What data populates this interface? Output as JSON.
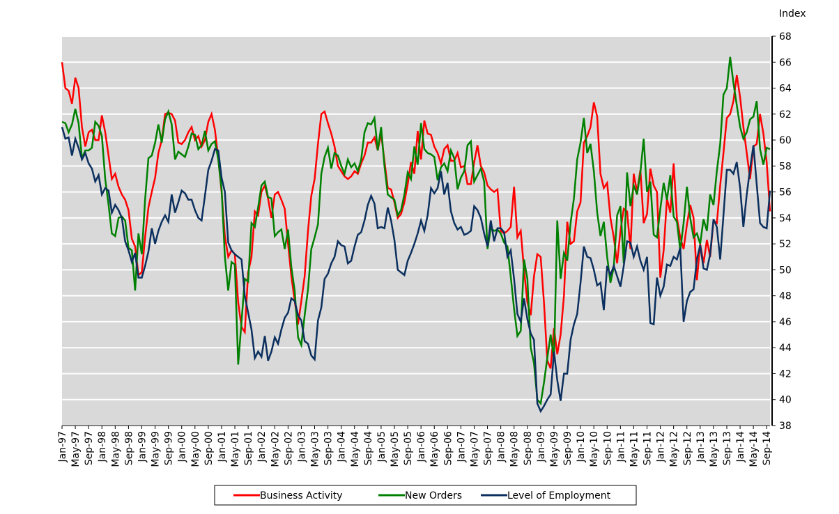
{
  "chart_data": {
    "type": "line",
    "y_label": "Index",
    "ylim": [
      38,
      68
    ],
    "yticks": [
      38,
      40,
      42,
      44,
      46,
      48,
      50,
      52,
      54,
      56,
      58,
      60,
      62,
      64,
      66,
      68
    ],
    "grid": true,
    "legend": "bottom",
    "categories": [
      "Jan-97",
      null,
      null,
      null,
      "May-97",
      null,
      null,
      null,
      "Sep-97",
      null,
      null,
      null,
      "Jan-98",
      null,
      null,
      null,
      "May-98",
      null,
      null,
      null,
      "Sep-98",
      null,
      null,
      null,
      "Jan-99",
      null,
      null,
      null,
      "May-99",
      null,
      null,
      null,
      "Sep-99",
      null,
      null,
      null,
      "Jan-00",
      null,
      null,
      null,
      "May-00",
      null,
      null,
      null,
      "Sep-00",
      null,
      null,
      null,
      "Jan-01",
      null,
      null,
      null,
      "May-01",
      null,
      null,
      null,
      "Sep-01",
      null,
      null,
      null,
      "Jan-02",
      null,
      null,
      null,
      "May-02",
      null,
      null,
      null,
      "Sep-02",
      null,
      null,
      null,
      "Jan-03",
      null,
      null,
      null,
      "May-03",
      null,
      null,
      null,
      "Sep-03",
      null,
      null,
      null,
      "Jan-04",
      null,
      null,
      null,
      "May-04",
      null,
      null,
      null,
      "Sep-04",
      null,
      null,
      null,
      "Jan-05",
      null,
      null,
      null,
      "May-05",
      null,
      null,
      null,
      "Sep-05",
      null,
      null,
      null,
      "Jan-06",
      null,
      null,
      null,
      "May-06",
      null,
      null,
      null,
      "Sep-06",
      null,
      null,
      null,
      "Jan-07",
      null,
      null,
      null,
      "May-07",
      null,
      null,
      null,
      "Sep-07",
      null,
      null,
      null,
      "Jan-08",
      null,
      null,
      null,
      "May-08",
      null,
      null,
      null,
      "Sep-08",
      null,
      null,
      null,
      "Jan-09",
      null,
      null,
      null,
      "May-09",
      null,
      null,
      null,
      "Sep-09",
      null,
      null,
      null,
      "Jan-10",
      null,
      null,
      null,
      "May-10",
      null,
      null,
      null,
      "Sep-10",
      null,
      null,
      null,
      "Jan-11",
      null,
      null,
      null,
      "May-11",
      null,
      null,
      null,
      "Sep-11",
      null,
      null,
      null,
      "Jan-12",
      null,
      null,
      null,
      "May-12",
      null,
      null,
      null,
      "Sep-12",
      null,
      null,
      null,
      "Jan-13",
      null,
      null,
      null,
      "May-13",
      null,
      null,
      null,
      "Sep-13",
      null,
      null,
      null,
      "Jan-14",
      null,
      null,
      null,
      "May-14",
      null,
      null,
      null,
      "Sep-14",
      null
    ],
    "series": [
      {
        "name": "Business Activity",
        "color": "#ff0000",
        "values": [
          66,
          64,
          63.8,
          62.8,
          64.8,
          64,
          61,
          59.5,
          60.6,
          60.8,
          60,
          60,
          61.9,
          60.6,
          58.8,
          57,
          57.4,
          56.4,
          55.8,
          55.4,
          54.6,
          52.4,
          51.8,
          49.6,
          49.8,
          52.5,
          54.8,
          56,
          57.1,
          59,
          60,
          62,
          62.1,
          62,
          61.5,
          59.8,
          59.7,
          60,
          60.6,
          61,
          60,
          60.3,
          59.5,
          60,
          61.4,
          62,
          60.8,
          58.6,
          56,
          52.6,
          51,
          51.5,
          51.2,
          47.5,
          45.6,
          45.2,
          49.8,
          51,
          54.5,
          54.2,
          56,
          56.5,
          55.5,
          54,
          55.8,
          56,
          55.4,
          54.7,
          52,
          49.5,
          47.6,
          45.8,
          47.6,
          49.5,
          53,
          55.7,
          57,
          59.7,
          62,
          62.2,
          61.3,
          60.5,
          59.5,
          58,
          57.6,
          57.2,
          57,
          57.2,
          57.6,
          57.4,
          58.2,
          58.8,
          59.8,
          59.8,
          60.2,
          59.2,
          60.5,
          58.4,
          56.3,
          56.2,
          55.2,
          54,
          54.3,
          55.2,
          56.6,
          58.3,
          57.4,
          60.7,
          58.5,
          61.5,
          60.5,
          60.4,
          59.5,
          59,
          58.2,
          59.3,
          59.6,
          58.4,
          58.4,
          59,
          57.9,
          58,
          56.6,
          56.6,
          58.3,
          59.6,
          58,
          57.5,
          56.5,
          56.2,
          56,
          56.2,
          53,
          52.8,
          53,
          53.3,
          56.4,
          52.5,
          53,
          50,
          47.5,
          46.5,
          49.5,
          51.2,
          51,
          47.5,
          43,
          42.4,
          45.5,
          43.5,
          45,
          48,
          53.7,
          52,
          52.2,
          54.5,
          55.2,
          59.8,
          60.3,
          61,
          62.9,
          61.8,
          57.4,
          56.3,
          56.7,
          54,
          52.5,
          50.5,
          53,
          54.7,
          54.5,
          51.6,
          57.4,
          56,
          57.7,
          53.6,
          54.3,
          57.8,
          56.5,
          56,
          49.4,
          51.5,
          55.5,
          54.4,
          58.2,
          54,
          52.5,
          51.6,
          53.5,
          55,
          54,
          49.2,
          52,
          50.5,
          52.3,
          51,
          53.8,
          53.6,
          56.5,
          59,
          61.7,
          62,
          63,
          65,
          63.3,
          61,
          59,
          57,
          59.5,
          59.7,
          62,
          60.5,
          58.3,
          54.5
        ]
      },
      {
        "name": "New Orders",
        "color": "#008000",
        "values": [
          61.4,
          61.3,
          60.6,
          61.2,
          62.4,
          61.3,
          58.6,
          59.2,
          59.2,
          59.4,
          61.4,
          61.1,
          60.3,
          57,
          55,
          52.8,
          52.6,
          54,
          54.1,
          53.8,
          51.7,
          51.5,
          48.4,
          52.8,
          51.2,
          55.4,
          58.6,
          58.8,
          59.8,
          61.2,
          59.8,
          61.6,
          62.2,
          61.2,
          58.5,
          59.1,
          58.9,
          58.7,
          59.5,
          60.5,
          60.4,
          59.3,
          59.6,
          60.7,
          59.2,
          59.7,
          59.9,
          58.5,
          56.2,
          51,
          48.4,
          50.6,
          50.4,
          42.7,
          46,
          49.3,
          49.1,
          53.6,
          53.3,
          54.8,
          56.5,
          56.8,
          55.6,
          55.5,
          52.6,
          52.9,
          53.1,
          51.6,
          53.1,
          50.2,
          48.4,
          44.8,
          44.2,
          46.5,
          48.5,
          51.6,
          52.5,
          53.5,
          57.4,
          58.7,
          59.4,
          57.8,
          59,
          58.8,
          58,
          57.4,
          58.5,
          57.9,
          58.2,
          57.6,
          58.5,
          60.6,
          61.3,
          61.2,
          61.7,
          59.2,
          61,
          58,
          55.8,
          55.6,
          55.4,
          54.2,
          54.6,
          55.8,
          57.5,
          57,
          59.5,
          58.1,
          61.3,
          59.3,
          59,
          58.9,
          58.7,
          56.9,
          57.9,
          58.2,
          57.6,
          59.2,
          58.6,
          56.2,
          57.1,
          57.6,
          59.6,
          59.9,
          56.8,
          57.3,
          57.8,
          56.8,
          51.6,
          53.2,
          53,
          53.1,
          52.8,
          52.1,
          51.8,
          49.5,
          47,
          44.9,
          45.3,
          50.8,
          49.3,
          44,
          42.8,
          40,
          39.7,
          41.3,
          43.2,
          45,
          43.1,
          53.8,
          49.3,
          51.3,
          50.7,
          53.6,
          55.5,
          58.5,
          59.8,
          61.7,
          59,
          59.7,
          57.6,
          54.4,
          52.6,
          53.7,
          51,
          49,
          50.2,
          54.2,
          54.9,
          50.5,
          57.5,
          54.9,
          56.5,
          55.8,
          57.5,
          60.1,
          56,
          56.8,
          52.7,
          52.5,
          54.7,
          56.7,
          55.4,
          57.3,
          54.1,
          53.7,
          51.5,
          53.6,
          56.4,
          54,
          52.5,
          52.8,
          52,
          53.9,
          53,
          55.8,
          55,
          57.6,
          59.7,
          63.5,
          64,
          66.4,
          64.4,
          62.7,
          61,
          60.1,
          60.6,
          61.6,
          61.8,
          63,
          59.3,
          58.1,
          59.4,
          59.3
        ]
      },
      {
        "name": "Level of Employment",
        "color": "#0b2f5e",
        "values": [
          61,
          60.1,
          60.2,
          58.8,
          60.1,
          59.4,
          58.5,
          59,
          58.2,
          57.8,
          56.8,
          57.3,
          55.8,
          56.3,
          56.1,
          54.4,
          55,
          54.6,
          54,
          52.2,
          51.5,
          50.6,
          51.3,
          49.4,
          49.4,
          50.3,
          51.4,
          53.2,
          52,
          53,
          53.7,
          54.2,
          53.7,
          55.8,
          54.4,
          55.2,
          56.1,
          55.9,
          55.4,
          55.4,
          54.6,
          54,
          53.8,
          55.7,
          57.7,
          58.4,
          59.3,
          59.2,
          57.1,
          56,
          52.1,
          51.5,
          51.2,
          51,
          50.8,
          48,
          46.7,
          45.4,
          43.2,
          43.7,
          43.3,
          44.9,
          43,
          43.7,
          44.8,
          44.3,
          45.4,
          46.3,
          46.7,
          47.8,
          47.6,
          46.5,
          46.1,
          44.5,
          44.3,
          43.4,
          43.1,
          46.1,
          47.1,
          49.3,
          49.7,
          50.5,
          51,
          52.2,
          51.9,
          51.8,
          50.5,
          50.7,
          51.8,
          52.7,
          52.9,
          53.8,
          55,
          55.7,
          55.1,
          53.2,
          53.3,
          53.2,
          54.8,
          53.8,
          52.3,
          50,
          49.8,
          49.6,
          50.7,
          51.3,
          52,
          52.8,
          53.8,
          53,
          54.2,
          56.3,
          55.9,
          56.3,
          57.6,
          55.8,
          56.7,
          54.5,
          53.6,
          53.1,
          53.3,
          52.7,
          52.8,
          53,
          54.9,
          54.6,
          54,
          52.8,
          51.8,
          53.8,
          52.2,
          53.2,
          53.2,
          52.9,
          51,
          51.5,
          49.3,
          46.6,
          46,
          47.8,
          46.2,
          45.1,
          44.6,
          39.7,
          39.1,
          39.5,
          40,
          40.4,
          43.7,
          41.5,
          39.9,
          42,
          42,
          44.6,
          45.8,
          46.6,
          49,
          51.8,
          51,
          50.9,
          50,
          48.8,
          49,
          46.9,
          50.3,
          49.6,
          50.3,
          49.5,
          48.7,
          50.3,
          52.2,
          52.1,
          51,
          51.8,
          50.7,
          50,
          51,
          45.9,
          45.8,
          49.4,
          48,
          48.7,
          50.4,
          50.3,
          51,
          50.8,
          51.7,
          46,
          47.6,
          48.3,
          48.5,
          50.8,
          51.9,
          50.1,
          50,
          51.2,
          53.9,
          53.3,
          50.8,
          54.2,
          57.7,
          57.7,
          57.4,
          58.3,
          56.3,
          53.3,
          55.8,
          57.8,
          59.6,
          56.6,
          53.6,
          53.3,
          53.2,
          56.1
        ]
      }
    ]
  }
}
